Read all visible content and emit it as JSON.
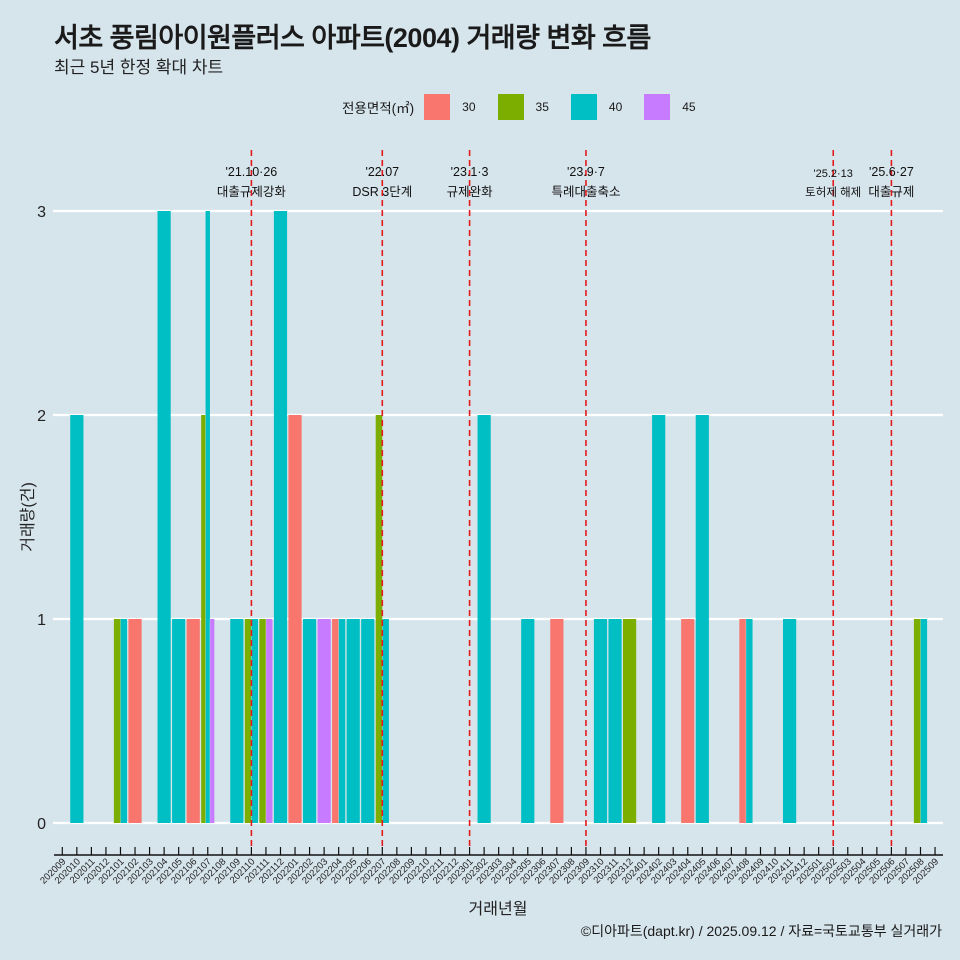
{
  "header": {
    "title": "서초 풍림아이원플러스 아파트(2004) 거래량 변화 흐름",
    "subtitle": "최근 5년 한정 확대 차트"
  },
  "legend": {
    "title": "전용면적(㎡)",
    "items": [
      {
        "label": "30",
        "color": "#F8766D"
      },
      {
        "label": "35",
        "color": "#7CAE00"
      },
      {
        "label": "40",
        "color": "#00BFC4"
      },
      {
        "label": "45",
        "color": "#C77CFF"
      }
    ]
  },
  "caption": "©디아파트(dapt.kr) / 2025.09.12 / 자료=국토교통부 실거래가",
  "chart_data": {
    "type": "bar",
    "title": "서초 풍림아이원플러스 아파트(2004) 거래량 변화 흐름",
    "subtitle": "최근 5년 한정 확대 차트",
    "xlabel": "거래년월",
    "ylabel": "거래량(건)",
    "ylim": [
      0,
      3
    ],
    "yticks": [
      "0",
      "1",
      "2",
      "3"
    ],
    "grid": true,
    "legend_position": "top",
    "bar_mode": "dodge",
    "categories": [
      "202009",
      "202010",
      "202011",
      "202012",
      "202101",
      "202102",
      "202103",
      "202104",
      "202105",
      "202106",
      "202107",
      "202108",
      "202109",
      "202110",
      "202111",
      "202112",
      "202201",
      "202202",
      "202203",
      "202204",
      "202205",
      "202206",
      "202207",
      "202208",
      "202209",
      "202210",
      "202211",
      "202212",
      "202301",
      "202302",
      "202303",
      "202304",
      "202305",
      "202306",
      "202307",
      "202308",
      "202309",
      "202310",
      "202311",
      "202312",
      "202401",
      "202402",
      "202403",
      "202404",
      "202405",
      "202406",
      "202407",
      "202408",
      "202409",
      "202410",
      "202411",
      "202412",
      "202501",
      "202502",
      "202503",
      "202504",
      "202505",
      "202506",
      "202507",
      "202508",
      "202509"
    ],
    "series": [
      {
        "name": "30",
        "color": "#F8766D",
        "points": {
          "202102": 1,
          "202106": 1,
          "202201": 2,
          "202204": 1,
          "202307": 1,
          "202404": 1,
          "202408": 1
        }
      },
      {
        "name": "35",
        "color": "#7CAE00",
        "points": {
          "202101": 1,
          "202107": 2,
          "202110": 1,
          "202111": 1,
          "202207": 2,
          "202312": 1,
          "202508": 1
        }
      },
      {
        "name": "40",
        "color": "#00BFC4",
        "points": {
          "202010": 2,
          "202101": 1,
          "202104": 3,
          "202105": 1,
          "202107": 3,
          "202109": 1,
          "202110": 1,
          "202112": 3,
          "202202": 1,
          "202204": 1,
          "202205": 1,
          "202206": 1,
          "202207": 1,
          "202302": 2,
          "202305": 1,
          "202310": 1,
          "202311": 1,
          "202402": 2,
          "202405": 2,
          "202408": 1,
          "202411": 1,
          "202508": 1
        }
      },
      {
        "name": "45",
        "color": "#C77CFF",
        "points": {
          "202107": 1,
          "202111": 1,
          "202203": 1
        }
      }
    ],
    "annotations": [
      {
        "x": "202110",
        "date": "'21.10·26",
        "text": "대출규제강화"
      },
      {
        "x": "202207",
        "date": "'22.07",
        "text": "DSR 3단계"
      },
      {
        "x": "202301",
        "date": "'23.1·3",
        "text": "규제완화"
      },
      {
        "x": "202309",
        "date": "'23.9·7",
        "text": "특례대출축소"
      },
      {
        "x": "202502",
        "date": "'25.2·13",
        "text": "토허제 해제"
      },
      {
        "x": "202506",
        "date": "'25.6·27",
        "text": "대출규제"
      }
    ]
  }
}
